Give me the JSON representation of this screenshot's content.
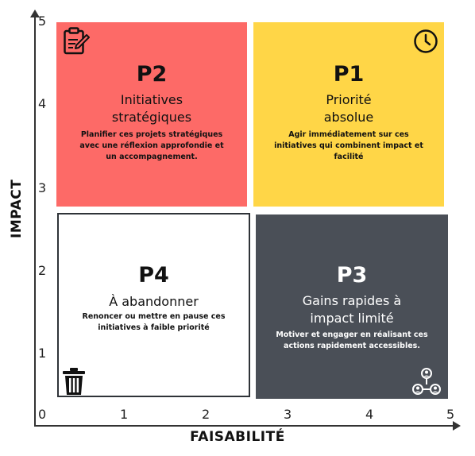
{
  "axes": {
    "ylabel": "IMPACT",
    "xlabel": "FAISABILITÉ",
    "y_ticks": [
      "1",
      "2",
      "3",
      "4",
      "5"
    ],
    "x_ticks": [
      "0",
      "1",
      "2",
      "3",
      "4",
      "5"
    ]
  },
  "quadrants": {
    "p2": {
      "code": "P2",
      "title_line1": "Initiatives",
      "title_line2": "stratégiques",
      "desc": "Planifier ces projets stratégiques avec une réflexion approfondie et un accompagnement.",
      "icon": "clipboard-edit-icon",
      "color": "#fd6a67"
    },
    "p1": {
      "code": "P1",
      "title_line1": "Priorité",
      "title_line2": "absolue",
      "desc": "Agir immédiatement sur ces initiatives qui combinent impact et facilité",
      "icon": "clock-icon",
      "color": "#ffd647"
    },
    "p4": {
      "code": "P4",
      "title_line1": "À abandonner",
      "desc": "Renoncer ou mettre en pause ces initiatives à faible priorité",
      "icon": "trash-icon",
      "color": "#ffffff"
    },
    "p3": {
      "code": "P3",
      "title_line1": "Gains rapides à",
      "title_line2": "impact limité",
      "desc": "Motiver et engager en réalisant ces actions rapidement accessibles.",
      "icon": "team-network-icon",
      "color": "#4a4f57"
    }
  }
}
